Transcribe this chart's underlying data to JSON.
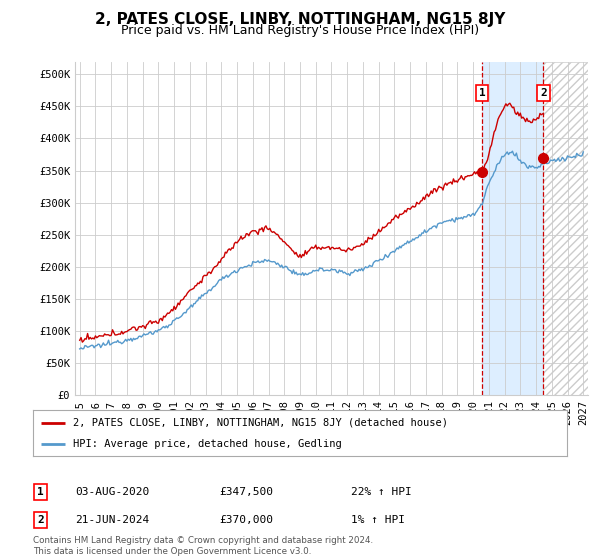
{
  "title": "2, PATES CLOSE, LINBY, NOTTINGHAM, NG15 8JY",
  "subtitle": "Price paid vs. HM Land Registry's House Price Index (HPI)",
  "ylabel_ticks": [
    "£0",
    "£50K",
    "£100K",
    "£150K",
    "£200K",
    "£250K",
    "£300K",
    "£350K",
    "£400K",
    "£450K",
    "£500K"
  ],
  "ytick_values": [
    0,
    50000,
    100000,
    150000,
    200000,
    250000,
    300000,
    350000,
    400000,
    450000,
    500000
  ],
  "ylim": [
    0,
    520000
  ],
  "xlim_start": 1994.7,
  "xlim_end": 2027.3,
  "xtick_years": [
    1995,
    1996,
    1997,
    1998,
    1999,
    2000,
    2001,
    2002,
    2003,
    2004,
    2005,
    2006,
    2007,
    2008,
    2009,
    2010,
    2011,
    2012,
    2013,
    2014,
    2015,
    2016,
    2017,
    2018,
    2019,
    2020,
    2021,
    2022,
    2023,
    2024,
    2025,
    2026,
    2027
  ],
  "red_line_color": "#cc0000",
  "blue_line_color": "#5599cc",
  "shade_color": "#ddeeff",
  "hatch_color": "#cccccc",
  "point1_x": 2020.58,
  "point1_y": 347500,
  "point1_label": "1",
  "point2_x": 2024.47,
  "point2_y": 370000,
  "point2_label": "2",
  "vline1_x": 2020.58,
  "vline2_x": 2024.47,
  "legend_red": "2, PATES CLOSE, LINBY, NOTTINGHAM, NG15 8JY (detached house)",
  "legend_blue": "HPI: Average price, detached house, Gedling",
  "annotation1_label": "1",
  "annotation1_date": "03-AUG-2020",
  "annotation1_price": "£347,500",
  "annotation1_hpi": "22% ↑ HPI",
  "annotation2_label": "2",
  "annotation2_date": "21-JUN-2024",
  "annotation2_price": "£370,000",
  "annotation2_hpi": "1% ↑ HPI",
  "footer": "Contains HM Land Registry data © Crown copyright and database right 2024.\nThis data is licensed under the Open Government Licence v3.0.",
  "background_color": "#ffffff",
  "grid_color": "#cccccc",
  "title_fontsize": 11,
  "subtitle_fontsize": 9,
  "tick_fontsize": 7.5,
  "legend_fontsize": 8
}
